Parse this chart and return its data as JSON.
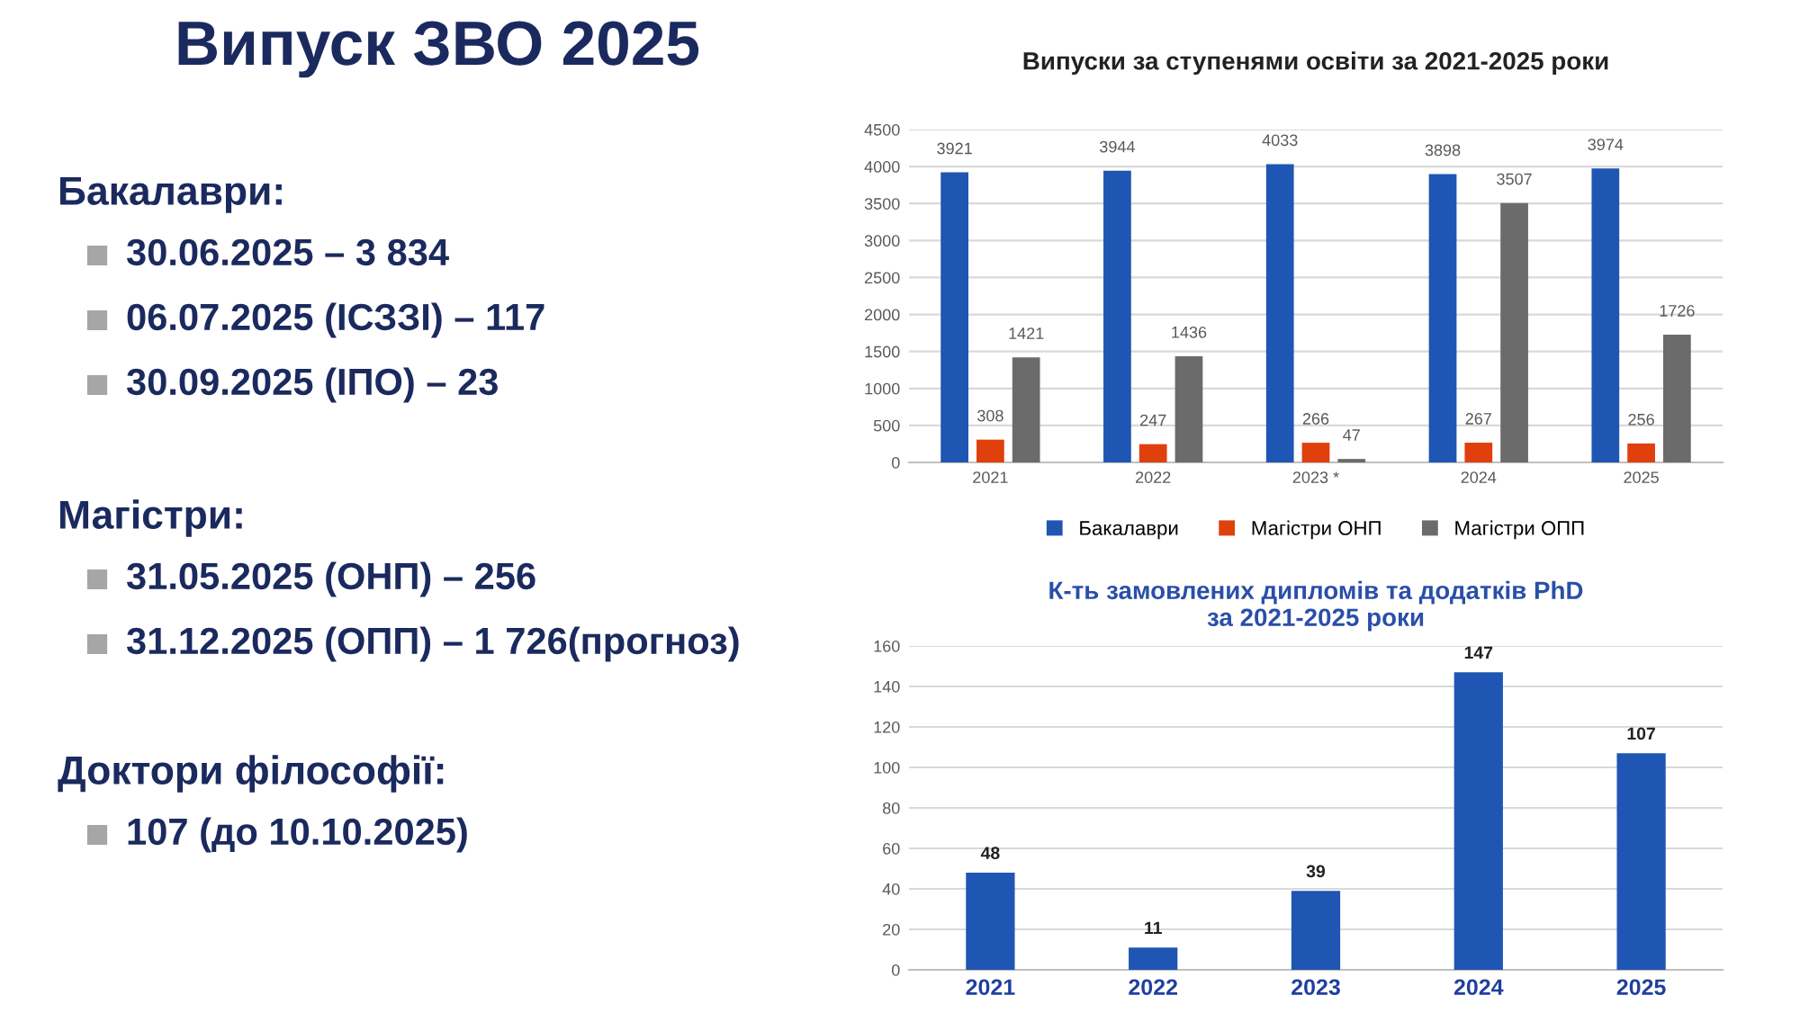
{
  "chart_data": [
    {
      "type": "other",
      "title": "Випуск ЗВО 2025",
      "subtitle": "Бакалаври:",
      "annotations": [
        "30.06.2025 – 3 834",
        "06.07.2025 (ІСЗЗІ) – 117",
        "30.09.2025 (ІПО) – 23"
      ]
    },
    {
      "type": "other",
      "subtitle": "Магістри:",
      "annotations": [
        "31.05.2025 (ОНП) – 256",
        "31.12.2025 (ОПП) – 1 726(прогноз)"
      ]
    },
    {
      "type": "other",
      "subtitle": "Доктори філософії:",
      "annotations": [
        "107 (до 10.10.2025)"
      ]
    },
    {
      "type": "bar",
      "title": "Випуски за ступенями освіти за 2021-2025 роки",
      "categories": [
        "2021",
        "2022",
        "2023 *",
        "2024",
        "2025"
      ],
      "series": [
        {
          "name": "Бакалаври",
          "color": "#1f56b3",
          "values": [
            3921,
            3944,
            4033,
            3898,
            3974
          ]
        },
        {
          "name": "Магістри ОНП",
          "color": "#e0400c",
          "values": [
            308,
            247,
            266,
            267,
            256
          ]
        },
        {
          "name": "Магістри ОПП",
          "color": "#6b6b6b",
          "values": [
            1421,
            1436,
            47,
            3507,
            1726
          ]
        }
      ],
      "ylim": [
        0,
        4500
      ],
      "yticks": [
        0,
        500,
        1000,
        1500,
        2000,
        2500,
        3000,
        3500,
        4000,
        4500
      ],
      "grid": "y",
      "legend": "bottom",
      "data_labels": true
    },
    {
      "type": "bar",
      "title": "К-ть замовлених дипломів та додатків PhD\nза 2021-2025 роки",
      "categories": [
        "2021",
        "2022",
        "2023",
        "2024",
        "2025"
      ],
      "series": [
        {
          "color": "#1f56b3",
          "values": [
            48,
            11,
            39,
            147,
            107
          ]
        }
      ],
      "ylim": [
        0,
        160
      ],
      "yticks": [
        0,
        20,
        40,
        60,
        80,
        100,
        120,
        140,
        160
      ],
      "grid": "y",
      "data_labels": true
    }
  ]
}
